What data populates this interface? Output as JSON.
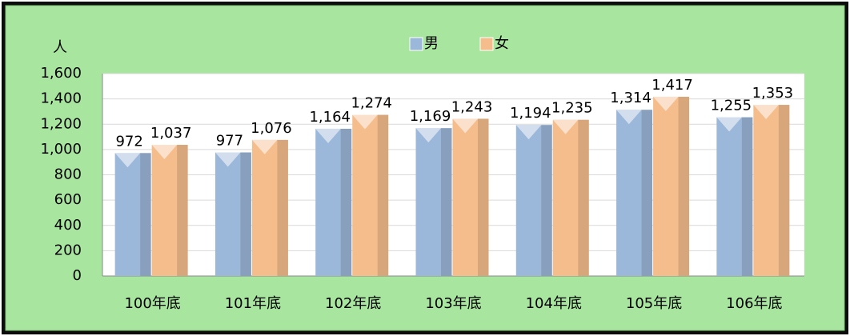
{
  "chart_data": {
    "type": "bar",
    "y_label": "人",
    "categories": [
      "100年底",
      "101年底",
      "102年底",
      "103年底",
      "104年底",
      "105年底",
      "106年底"
    ],
    "series": [
      {
        "name": "男",
        "color": "#9bb7d9",
        "values": [
          972,
          977,
          1164,
          1169,
          1194,
          1314,
          1255
        ],
        "value_labels": [
          "972",
          "977",
          "1,164",
          "1,169",
          "1,194",
          "1,314",
          "1,255"
        ]
      },
      {
        "name": "女",
        "color": "#f5bd8c",
        "values": [
          1037,
          1076,
          1274,
          1243,
          1235,
          1417,
          1353
        ],
        "value_labels": [
          "1,037",
          "1,076",
          "1,274",
          "1,243",
          "1,235",
          "1,417",
          "1,353"
        ]
      }
    ],
    "ylim": [
      0,
      1600
    ],
    "yticks": [
      0,
      200,
      400,
      600,
      800,
      {
        "value": 1000,
        "label": "1,000"
      },
      {
        "value": 1200,
        "label": "1,200"
      },
      {
        "value": 1400,
        "label": "1,400"
      },
      {
        "value": 1600,
        "label": "1,600"
      }
    ],
    "grid": true,
    "legend": "top"
  }
}
